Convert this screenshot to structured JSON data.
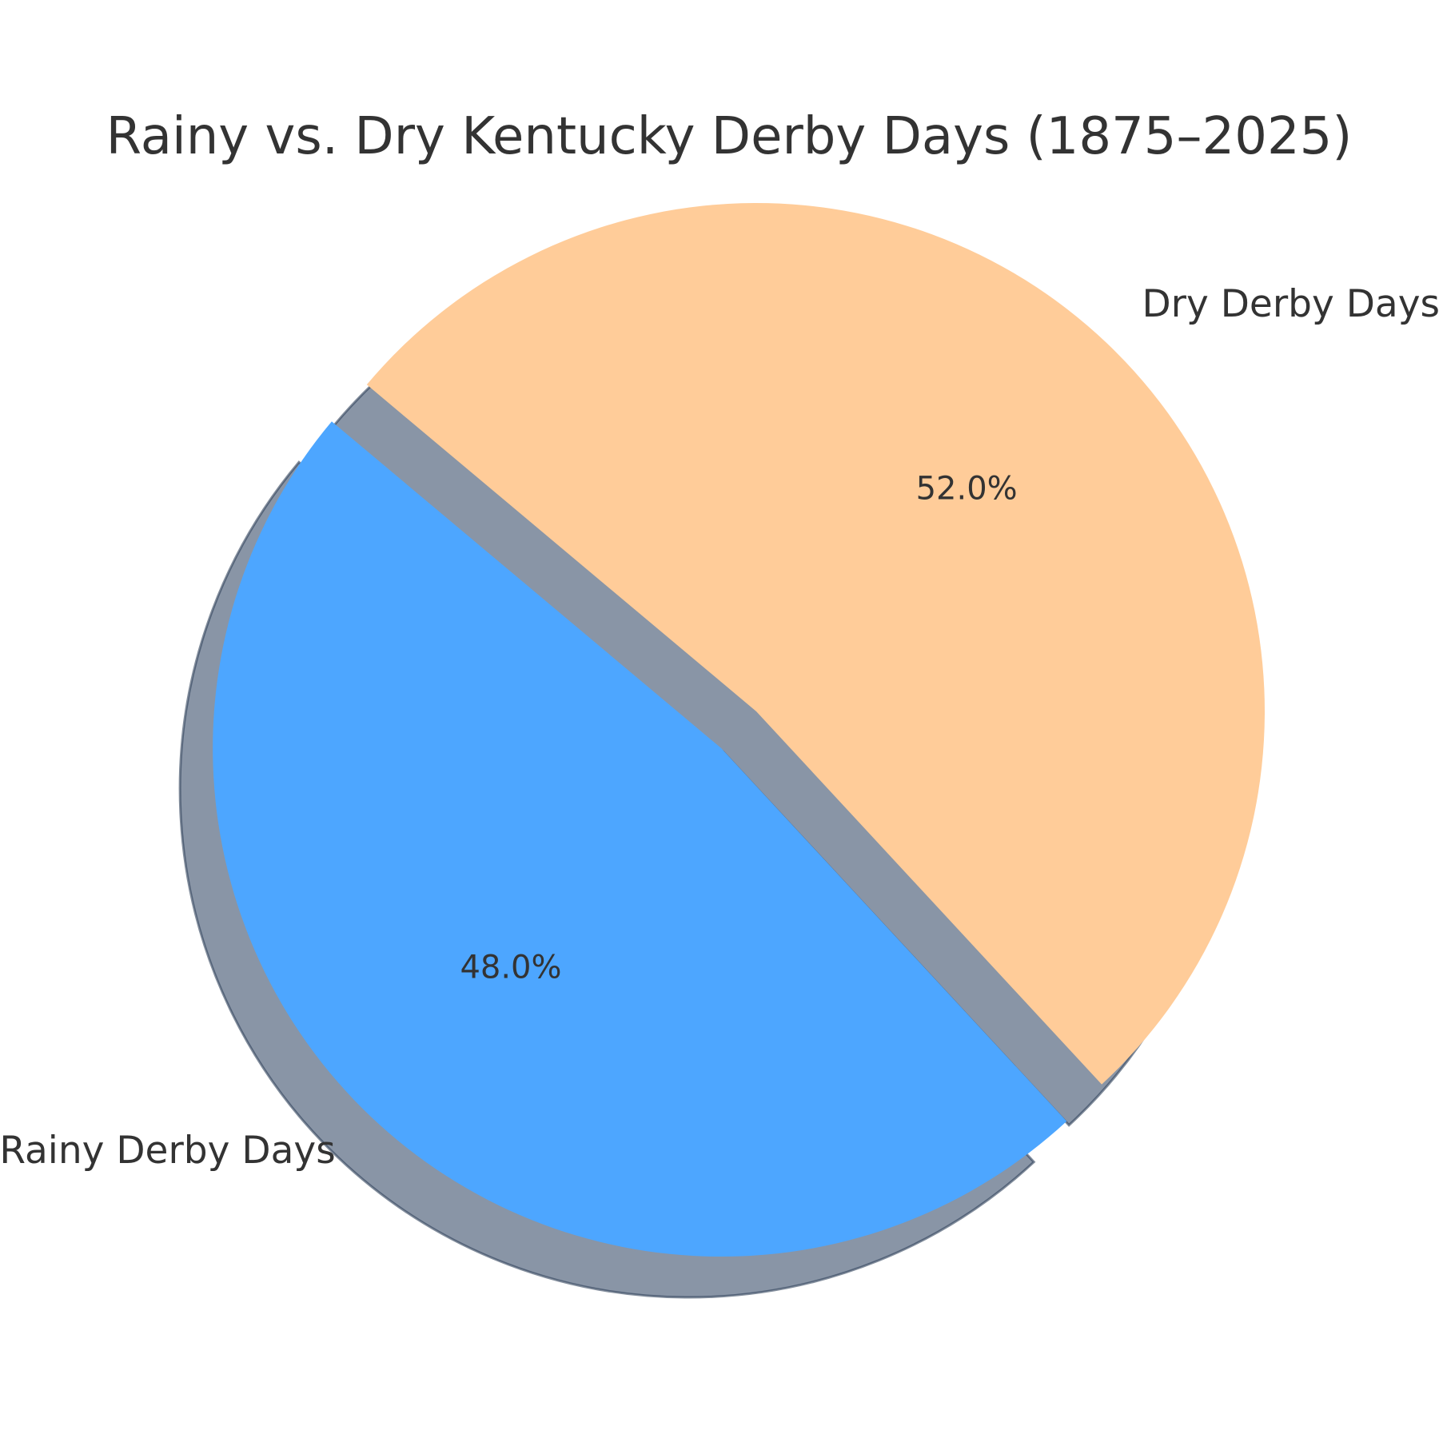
{
  "chart_data": {
    "type": "pie",
    "title": "Rainy vs. Dry Kentucky Derby Days (1875–2025)",
    "start_angle_deg": 140,
    "direction": "counterclockwise",
    "shadow": true,
    "explode": [
      0.1,
      0
    ],
    "slices": [
      {
        "label": "Rainy Derby Days",
        "value": 48.0,
        "pct_label": "48.0%",
        "color": "#4da6ff"
      },
      {
        "label": "Dry Derby Days",
        "value": 52.0,
        "pct_label": "52.0%",
        "color": "#ffcc99"
      }
    ]
  }
}
